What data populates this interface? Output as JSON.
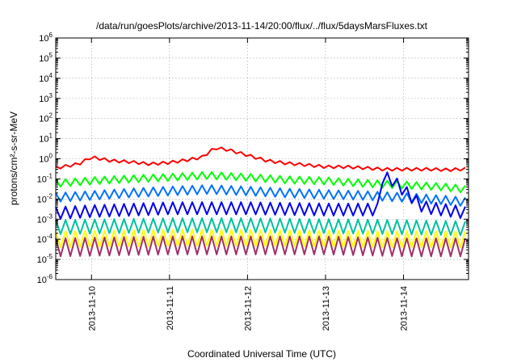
{
  "chart_data": {
    "type": "line",
    "title": "/data/run/goesPlots/archive/2013-11-14/20:00/flux/../flux/5daysMarsFluxes.txt",
    "xlabel": "Coordinated Universal Time (UTC)",
    "ylabel": "protons/cm²-s-sr-MeV",
    "xlim": [
      "2013-11-09T13:00",
      "2013-11-14T20:00"
    ],
    "ylim": [
      1e-06,
      1000000.0
    ],
    "yscale": "log",
    "grid": true,
    "x_ticks": [
      "2013-11-10",
      "2013-11-11",
      "2013-11-12",
      "2013-11-13",
      "2013-11-14"
    ],
    "y_ticks": [
      {
        "mant": "10",
        "exp": "6"
      },
      {
        "mant": "10",
        "exp": "5"
      },
      {
        "mant": "10",
        "exp": "4"
      },
      {
        "mant": "10",
        "exp": "3"
      },
      {
        "mant": "10",
        "exp": "2"
      },
      {
        "mant": "10",
        "exp": "1"
      },
      {
        "mant": "10",
        "exp": "0"
      },
      {
        "mant": "10",
        "exp": "-1"
      },
      {
        "mant": "10",
        "exp": "-2"
      },
      {
        "mant": "10",
        "exp": "-3"
      },
      {
        "mant": "10",
        "exp": "-4"
      },
      {
        "mant": "10",
        "exp": "-5"
      },
      {
        "mant": "10",
        "exp": "-6"
      }
    ],
    "series": [
      {
        "color": "#ff0000",
        "x": [
          "2013-11-09T13:00",
          "2013-11-09T20:00",
          "2013-11-10T00:00",
          "2013-11-10T06:00",
          "2013-11-10T12:00",
          "2013-11-10T18:00",
          "2013-11-11T00:00",
          "2013-11-11T06:00",
          "2013-11-11T10:00",
          "2013-11-11T14:00",
          "2013-11-11T18:00",
          "2013-11-12T00:00",
          "2013-11-12T06:00",
          "2013-11-12T12:00",
          "2013-11-12T18:00",
          "2013-11-13T00:00",
          "2013-11-13T06:00",
          "2013-11-13T12:00",
          "2013-11-13T18:00",
          "2013-11-14T00:00",
          "2013-11-14T08:00",
          "2013-11-14T14:00",
          "2013-11-14T20:00"
        ],
        "y": [
          0.35,
          0.55,
          1.2,
          0.8,
          0.7,
          0.55,
          0.65,
          0.9,
          1.2,
          3.5,
          2.8,
          1.5,
          0.8,
          0.6,
          0.5,
          0.4,
          0.4,
          0.35,
          0.3,
          0.3,
          0.3,
          0.28,
          0.32
        ]
      },
      {
        "color": "#00ff00",
        "x": [
          "2013-11-09T13:00",
          "2013-11-10T00:00",
          "2013-11-10T12:00",
          "2013-11-11T00:00",
          "2013-11-11T12:00",
          "2013-11-12T00:00",
          "2013-11-12T12:00",
          "2013-11-13T00:00",
          "2013-11-13T12:00",
          "2013-11-14T00:00",
          "2013-11-14T12:00",
          "2013-11-14T20:00"
        ],
        "y": [
          0.06,
          0.08,
          0.1,
          0.12,
          0.15,
          0.12,
          0.09,
          0.08,
          0.06,
          0.05,
          0.04,
          0.03
        ]
      },
      {
        "color": "#0072ff",
        "x": [
          "2013-11-09T13:00",
          "2013-11-10T00:00",
          "2013-11-10T12:00",
          "2013-11-11T00:00",
          "2013-11-11T12:00",
          "2013-11-12T00:00",
          "2013-11-12T12:00",
          "2013-11-13T00:00",
          "2013-11-13T12:00",
          "2013-11-14T00:00",
          "2013-11-14T12:00",
          "2013-11-14T20:00"
        ],
        "y": [
          0.012,
          0.015,
          0.02,
          0.025,
          0.03,
          0.025,
          0.02,
          0.017,
          0.015,
          0.012,
          0.009,
          0.007
        ]
      },
      {
        "color": "#0000ee",
        "x": [
          "2013-11-09T13:00",
          "2013-11-10T00:00",
          "2013-11-11T00:00",
          "2013-11-12T00:00",
          "2013-11-13T00:00",
          "2013-11-13T16:00",
          "2013-11-13T17:00",
          "2013-11-13T20:00",
          "2013-11-14T06:00",
          "2013-11-14T20:00"
        ],
        "y": [
          0.002,
          0.0025,
          0.0035,
          0.0035,
          0.003,
          0.003,
          0.12,
          0.1,
          0.004,
          0.002
        ]
      },
      {
        "color": "#00c0a0",
        "x": [
          "2013-11-09T13:00",
          "2013-11-11T00:00",
          "2013-11-12T00:00",
          "2013-11-13T00:00",
          "2013-11-14T00:00",
          "2013-11-14T20:00"
        ],
        "y": [
          0.0004,
          0.0005,
          0.0005,
          0.00045,
          0.0004,
          0.00035
        ]
      },
      {
        "color": "#ffff00",
        "x": [
          "2013-11-09T13:00",
          "2013-11-11T00:00",
          "2013-11-12T00:00",
          "2013-11-13T00:00",
          "2013-11-14T00:00",
          "2013-11-14T20:00"
        ],
        "y": [
          0.0001,
          0.00012,
          0.00012,
          0.00011,
          0.0001,
          0.0001
        ]
      },
      {
        "color": "#a0306a",
        "x": [
          "2013-11-09T13:00",
          "2013-11-11T00:00",
          "2013-11-12T00:00",
          "2013-11-13T00:00",
          "2013-11-14T00:00",
          "2013-11-14T20:00"
        ],
        "y": [
          4e-05,
          5e-05,
          5e-05,
          5e-05,
          4e-05,
          4e-05
        ]
      }
    ]
  }
}
